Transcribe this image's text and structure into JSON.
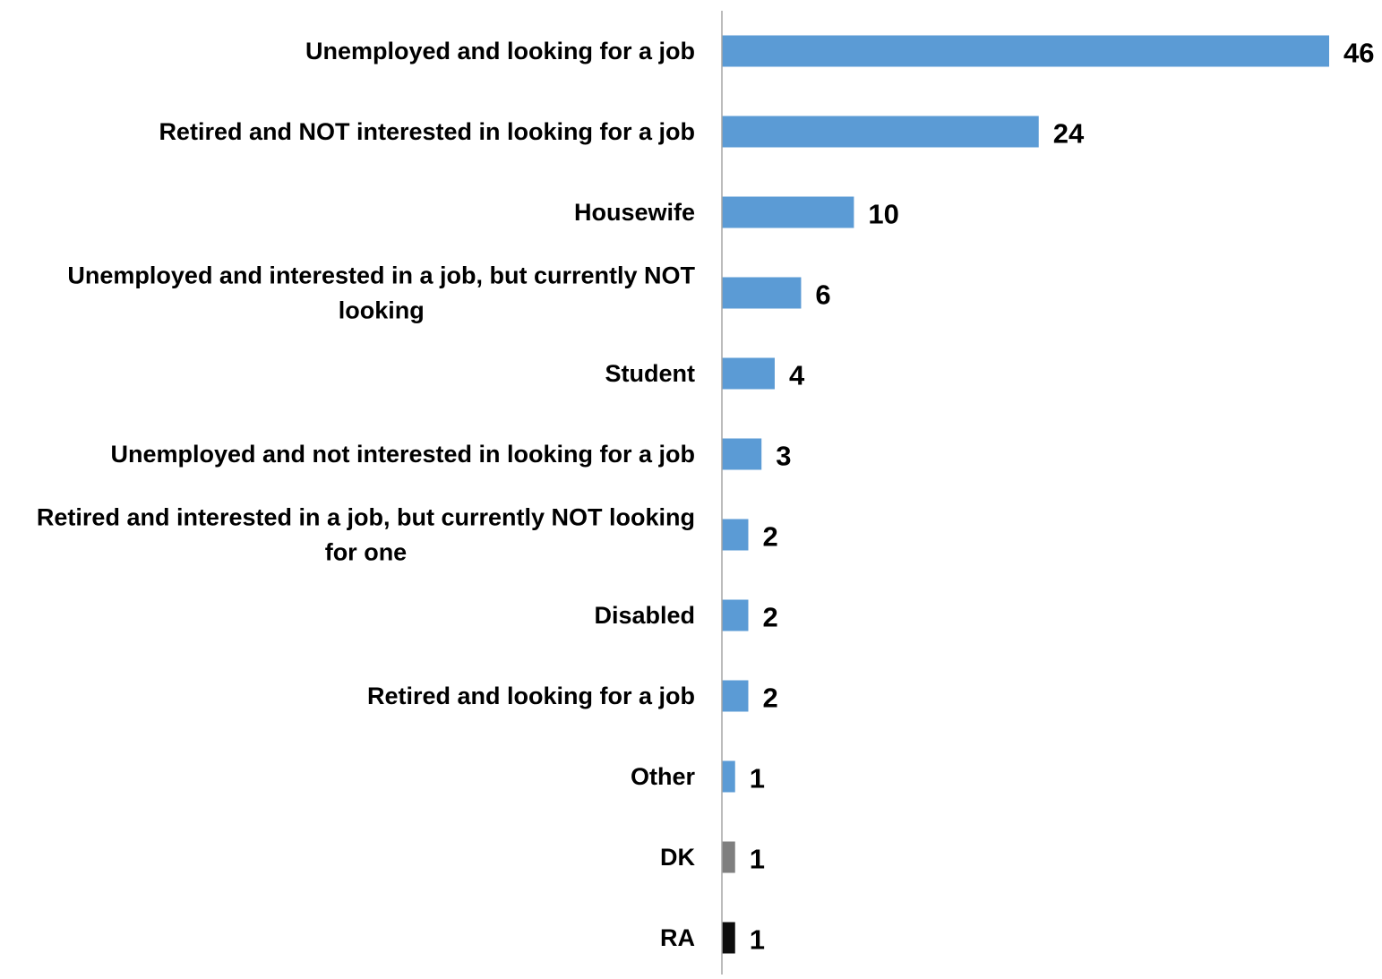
{
  "chart_data": {
    "type": "bar",
    "orientation": "horizontal",
    "title": "",
    "xlabel": "",
    "ylabel": "",
    "xlim": [
      0,
      46
    ],
    "grid": false,
    "legend": "none",
    "data_labels": true,
    "categories": [
      [
        "Unemployed and looking for a job"
      ],
      [
        "Retired and NOT interested in looking for a job"
      ],
      [
        "Housewife"
      ],
      [
        "Unemployed and interested in a job, but currently NOT",
        "looking"
      ],
      [
        "Student"
      ],
      [
        "Unemployed and not interested in looking for a job"
      ],
      [
        "Retired and interested in a job, but currently NOT looking",
        "for one"
      ],
      [
        "Disabled"
      ],
      [
        "Retired and looking for a job"
      ],
      [
        "Other"
      ],
      [
        "DK"
      ],
      [
        "RA"
      ]
    ],
    "values": [
      46,
      24,
      10,
      6,
      4,
      3,
      2,
      2,
      2,
      1,
      1,
      1
    ],
    "value_labels": [
      "46",
      "24",
      "10",
      "6",
      "4",
      "3",
      "2",
      "2",
      "2",
      "1",
      "1",
      "1"
    ],
    "bar_colors": [
      "#5b9bd5",
      "#5b9bd5",
      "#5b9bd5",
      "#5b9bd5",
      "#5b9bd5",
      "#5b9bd5",
      "#5b9bd5",
      "#5b9bd5",
      "#5b9bd5",
      "#5b9bd5",
      "#7f7f7f",
      "#0d0d0d"
    ],
    "axis_color": "#a6a6a6"
  }
}
